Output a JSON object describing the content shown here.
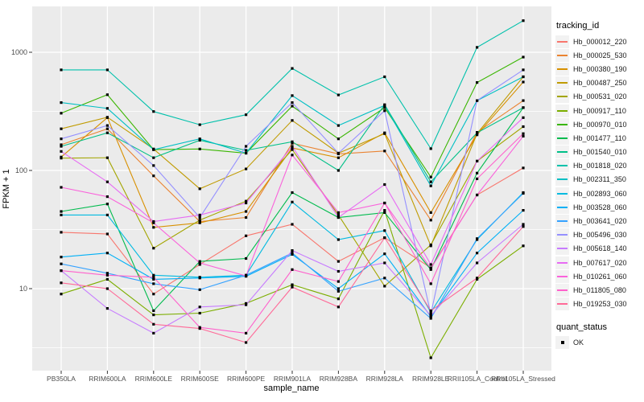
{
  "figure": {
    "y_axis_title": "FPKM + 1",
    "x_axis_title": "sample_name",
    "legend_title": "tracking_id",
    "legend2_title": "quant_status",
    "legend2_items": [
      {
        "label": "OK",
        "marker": "black-square"
      }
    ],
    "panel_bg": "#EBEBEB",
    "grid_color": "#FFFFFF",
    "tick_color": "#333333",
    "axis_text_color": "#4d4d4d"
  },
  "chart_data": {
    "type": "line",
    "title": "",
    "xlabel": "sample_name",
    "ylabel": "FPKM + 1",
    "y_scale": "log10",
    "y_ticks": [
      10,
      100,
      1000
    ],
    "y_tick_labels": [
      "10",
      "100",
      "1000"
    ],
    "y_minor_ticks": [
      3.1623,
      31.623,
      316.23
    ],
    "ylim": [
      2,
      2400
    ],
    "grid": true,
    "legend_position": "right",
    "legend_title": "tracking_id",
    "marker": "black-square",
    "categories": [
      "PB350LA",
      "RRIM600LA",
      "RRIM600LE",
      "RRIM600SE",
      "RRIM600PE",
      "RRIM901LA",
      "RRIM928BA",
      "RRIM928LA",
      "RRIM928LE",
      "RRII105LA_Control",
      "RRII105LA_Stressed"
    ],
    "series": [
      {
        "name": "Hb_000012_220",
        "color": "#F8766D",
        "values": [
          30,
          29,
          9,
          16,
          28,
          35,
          17,
          27,
          15,
          62,
          105
        ]
      },
      {
        "name": "Hb_000025_530",
        "color": "#EA8331",
        "values": [
          165,
          225,
          90,
          37,
          40,
          170,
          138,
          146,
          38,
          210,
          390
        ]
      },
      {
        "name": "Hb_000380_190",
        "color": "#D89000",
        "values": [
          130,
          280,
          33,
          36,
          45,
          155,
          128,
          208,
          44,
          200,
          560
        ]
      },
      {
        "name": "Hb_000487_250",
        "color": "#C09B00",
        "values": [
          225,
          282,
          152,
          70,
          103,
          265,
          140,
          205,
          23,
          205,
          620
        ]
      },
      {
        "name": "Hb_000531_020",
        "color": "#A3A500",
        "values": [
          127,
          128,
          22,
          38,
          55,
          150,
          42,
          10.5,
          23.5,
          120,
          235
        ]
      },
      {
        "name": "Hb_000917_110",
        "color": "#7CAE00",
        "values": [
          9,
          12,
          6,
          6.2,
          7.5,
          10.8,
          8.2,
          46,
          2.6,
          12,
          23
        ]
      },
      {
        "name": "Hb_000970_010",
        "color": "#39B600",
        "values": [
          305,
          437,
          150,
          152,
          140,
          350,
          185,
          340,
          88,
          555,
          910
        ]
      },
      {
        "name": "Hb_001477_110",
        "color": "#00BB4E",
        "values": [
          45,
          52,
          6.5,
          17,
          18,
          65,
          40,
          44,
          14.5,
          95,
          340
        ]
      },
      {
        "name": "Hb_001540_010",
        "color": "#00C087",
        "values": [
          160,
          208,
          128,
          180,
          148,
          175,
          100,
          360,
          80,
          208,
          340
        ]
      },
      {
        "name": "Hb_001818_020",
        "color": "#00C1AB",
        "values": [
          710,
          710,
          315,
          244,
          296,
          730,
          435,
          620,
          153,
          1100,
          1850
        ]
      },
      {
        "name": "Hb_002311_350",
        "color": "#00BFC4",
        "values": [
          375,
          335,
          150,
          185,
          140,
          430,
          240,
          355,
          74,
          390,
          620
        ]
      },
      {
        "name": "Hb_002893_060",
        "color": "#00BAE0",
        "values": [
          42,
          42,
          13,
          12.5,
          13,
          54,
          26,
          31,
          6.3,
          26,
          65
        ]
      },
      {
        "name": "Hb_003528_060",
        "color": "#00B0F6",
        "values": [
          18.5,
          20,
          12,
          12.3,
          12.7,
          19.5,
          10,
          19.7,
          5.8,
          20,
          46
        ]
      },
      {
        "name": "Hb_003641_020",
        "color": "#35A2FF",
        "values": [
          16.2,
          13.5,
          11,
          9.8,
          13,
          20,
          9.5,
          12.3,
          5.6,
          26.5,
          64
        ]
      },
      {
        "name": "Hb_005496_030",
        "color": "#9590FF",
        "values": [
          185,
          240,
          110,
          40,
          160,
          375,
          140,
          320,
          6.1,
          390,
          710
        ]
      },
      {
        "name": "Hb_005618_140",
        "color": "#C77CFF",
        "values": [
          14.2,
          6.8,
          4.2,
          7,
          7.3,
          21,
          14,
          16.5,
          5.9,
          16.5,
          35
        ]
      },
      {
        "name": "Hb_007617_020",
        "color": "#E76BF3",
        "values": [
          145,
          80,
          37,
          42,
          53,
          160,
          40,
          76,
          16,
          120,
          280
        ]
      },
      {
        "name": "Hb_010261_060",
        "color": "#FA62DB",
        "values": [
          72,
          60,
          36,
          16.5,
          12.8,
          135,
          44,
          53,
          14.8,
          62,
          195
        ]
      },
      {
        "name": "Hb_011805_080",
        "color": "#FF61CC",
        "values": [
          14.2,
          13,
          12.5,
          4.7,
          4.2,
          14.5,
          11.5,
          53,
          11,
          85,
          205
        ]
      },
      {
        "name": "Hb_019253_030",
        "color": "#FF6A98",
        "values": [
          11.2,
          10,
          5,
          4.6,
          3.5,
          10.3,
          7,
          27,
          6.5,
          12.3,
          33.5
        ]
      }
    ]
  }
}
